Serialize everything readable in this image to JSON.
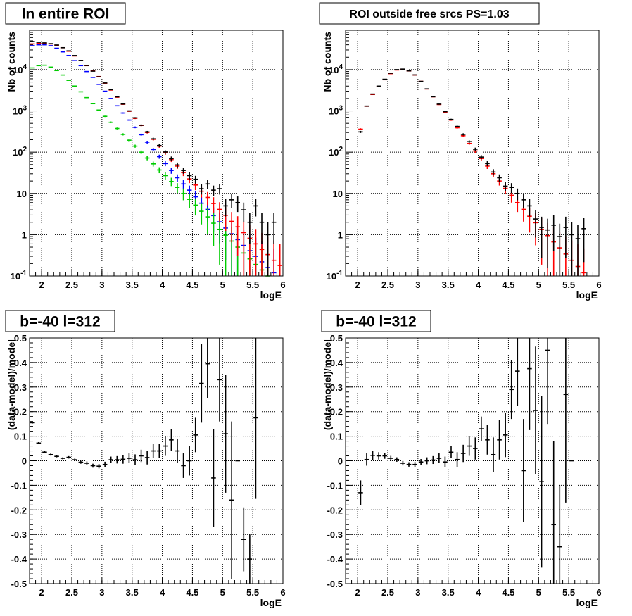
{
  "chart_data": [
    {
      "type": "scatter",
      "title": "In entire ROI",
      "xlabel": "logE",
      "ylabel": "Nb of counts",
      "xlim": [
        1.8,
        6.0
      ],
      "ylim": [
        0.1,
        90000
      ],
      "yscale": "log",
      "grid": true,
      "x_ticks": [
        "2",
        "2.5",
        "3",
        "3.5",
        "4",
        "4.5",
        "5",
        "5.5",
        "6"
      ],
      "y_ticks": [
        "10^{-1}",
        "1",
        "10",
        "10^{2}",
        "10^{3}",
        "10^{4}"
      ],
      "series": [
        {
          "color": "#0000ff",
          "bin_width": 0.1,
          "x": [
            1.85,
            1.95,
            2.05,
            2.15,
            2.25,
            2.35,
            2.45,
            2.55,
            2.65,
            2.75,
            2.85,
            2.95,
            3.05,
            3.15,
            3.25,
            3.35,
            3.45,
            3.55,
            3.65,
            3.75,
            3.85,
            3.95,
            4.05,
            4.15,
            4.25,
            4.35,
            4.45,
            4.55,
            4.65,
            4.75,
            4.85,
            4.95,
            5.05,
            5.15,
            5.25,
            5.35,
            5.45,
            5.55,
            5.65,
            5.75,
            5.85,
            5.95
          ],
          "y": [
            38000,
            40000,
            40000,
            38000,
            33000,
            27000,
            22000,
            16500,
            12500,
            9000,
            6500,
            4400,
            3000,
            2000,
            1330,
            890,
            600,
            400,
            265,
            175,
            116,
            78,
            53,
            36,
            24,
            17,
            12,
            8.3,
            5.8,
            4.1,
            2.9,
            2.05,
            1.45,
            1.05,
            0.76,
            0.55,
            0.41,
            0.3,
            0.22,
            0.16,
            0.12,
            0.09
          ]
        },
        {
          "color": "#00cc00",
          "bin_width": 0.1,
          "x": [
            1.85,
            1.95,
            2.05,
            2.15,
            2.25,
            2.35,
            2.45,
            2.55,
            2.65,
            2.75,
            2.85,
            2.95,
            3.05,
            3.15,
            3.25,
            3.35,
            3.45,
            3.55,
            3.65,
            3.75,
            3.85,
            3.95,
            4.05,
            4.15,
            4.25,
            4.35,
            4.45,
            4.55,
            4.65,
            4.75,
            4.85,
            4.95,
            5.05,
            5.15,
            5.25,
            5.35,
            5.45,
            5.55,
            5.65,
            5.75,
            5.85,
            5.95
          ],
          "y": [
            11000,
            12500,
            12800,
            11500,
            9500,
            7400,
            5500,
            4000,
            2900,
            2100,
            1500,
            1050,
            740,
            530,
            375,
            270,
            195,
            140,
            100,
            72,
            52,
            37,
            27,
            19.5,
            14,
            10,
            7.2,
            5.2,
            3.7,
            2.7,
            1.9,
            1.35,
            0.97,
            0.7,
            0.5,
            0.36,
            0.26,
            0.19,
            0.14,
            0.1,
            0.07,
            0.05
          ]
        },
        {
          "color": "#ff0000",
          "bin_width": 0.1,
          "x": [
            1.85,
            1.95,
            2.05,
            2.15,
            2.25,
            2.35,
            2.45,
            2.55,
            2.65,
            2.75,
            2.85,
            2.95,
            3.05,
            3.15,
            3.25,
            3.35,
            3.45,
            3.55,
            3.65,
            3.75,
            3.85,
            3.95,
            4.05,
            4.15,
            4.25,
            4.35,
            4.45,
            4.55,
            4.65,
            4.75,
            4.85,
            4.95,
            5.05,
            5.15,
            5.25,
            5.35,
            5.45,
            5.55,
            5.65,
            5.75,
            5.85,
            5.95
          ],
          "y": [
            42000,
            43000,
            43000,
            42000,
            39000,
            34000,
            28000,
            21500,
            16500,
            12500,
            9300,
            6800,
            4700,
            3200,
            2150,
            1450,
            980,
            660,
            445,
            300,
            205,
            140,
            96,
            66,
            46,
            32,
            22.5,
            16,
            11.3,
            8,
            5.7,
            4.1,
            2.95,
            2.1,
            1.55,
            1.12,
            0.82,
            0.6,
            0.44,
            0.33,
            0.24,
            0.18
          ]
        },
        {
          "color": "#000000",
          "bin_width": 0.1,
          "x": [
            1.85,
            1.95,
            2.05,
            2.15,
            2.25,
            2.35,
            2.45,
            2.55,
            2.65,
            2.75,
            2.85,
            2.95,
            3.05,
            3.15,
            3.25,
            3.35,
            3.45,
            3.55,
            3.65,
            3.75,
            3.85,
            3.95,
            4.05,
            4.15,
            4.25,
            4.35,
            4.45,
            4.55,
            4.65,
            4.75,
            4.85,
            4.95,
            5.05,
            5.15,
            5.25,
            5.35,
            5.45,
            5.55,
            5.65,
            5.75,
            5.85
          ],
          "y": [
            48000,
            46000,
            44500,
            42500,
            39500,
            34000,
            28500,
            22000,
            16700,
            12600,
            9200,
            6700,
            4750,
            3280,
            2200,
            1470,
            1000,
            680,
            450,
            310,
            210,
            145,
            101,
            70,
            49,
            36,
            27,
            22,
            13,
            17,
            12,
            13,
            5,
            7,
            6,
            4,
            2,
            5,
            2,
            1,
            2
          ]
        }
      ]
    },
    {
      "type": "scatter",
      "title": "ROI outside free srcs PS=1.03",
      "xlabel": "logE",
      "ylabel": "Nb of counts",
      "xlim": [
        1.8,
        6.0
      ],
      "ylim": [
        0.1,
        90000
      ],
      "yscale": "log",
      "grid": true,
      "x_ticks": [
        "2",
        "2.5",
        "3",
        "3.5",
        "4",
        "4.5",
        "5",
        "5.5",
        "6"
      ],
      "y_ticks": [
        "10^{-1}",
        "1",
        "10",
        "10^{2}",
        "10^{3}",
        "10^{4}"
      ],
      "series": [
        {
          "color": "#ff0000",
          "bin_width": 0.1,
          "x": [
            2.05,
            2.15,
            2.25,
            2.35,
            2.45,
            2.55,
            2.65,
            2.75,
            2.85,
            2.95,
            3.05,
            3.15,
            3.25,
            3.35,
            3.45,
            3.55,
            3.65,
            3.75,
            3.85,
            3.95,
            4.05,
            4.15,
            4.25,
            4.35,
            4.45,
            4.55,
            4.65,
            4.75,
            4.85,
            4.95,
            5.05,
            5.15,
            5.25,
            5.35,
            5.45,
            5.55,
            5.65,
            5.75,
            5.85,
            5.95
          ],
          "y": [
            360,
            1300,
            2500,
            3900,
            5700,
            8000,
            9800,
            10200,
            9300,
            7400,
            5200,
            3400,
            2200,
            1430,
            930,
            600,
            390,
            250,
            163,
            107,
            70,
            46,
            30,
            20,
            13.3,
            9,
            6,
            4.1,
            2.8,
            1.95,
            1.35,
            0.95,
            0.67,
            0.48,
            0.34,
            0.24,
            0.17,
            0.12,
            0.09,
            0.06
          ]
        },
        {
          "color": "#000000",
          "bin_width": 0.1,
          "x": [
            2.05,
            2.15,
            2.25,
            2.35,
            2.45,
            2.55,
            2.65,
            2.75,
            2.85,
            2.95,
            3.05,
            3.15,
            3.25,
            3.35,
            3.45,
            3.55,
            3.65,
            3.75,
            3.85,
            3.95,
            4.05,
            4.15,
            4.25,
            4.35,
            4.45,
            4.55,
            4.65,
            4.75,
            4.85,
            4.95,
            5.05,
            5.15,
            5.25,
            5.35,
            5.45,
            5.55,
            5.65,
            5.75
          ],
          "y": [
            310,
            1310,
            2560,
            3990,
            5850,
            8200,
            10000,
            10300,
            9350,
            7450,
            5200,
            3420,
            2210,
            1460,
            960,
            620,
            420,
            270,
            180,
            118,
            76,
            53,
            33,
            24,
            15,
            14,
            10,
            7,
            5,
            2.4,
            1.5,
            1.3,
            1.7,
            0.9,
            1.5,
            1,
            0.8,
            1.4
          ]
        }
      ]
    },
    {
      "type": "scatter",
      "title": "b=-40 l=312",
      "xlabel": "logE",
      "ylabel": "(data-model)/model",
      "xlim": [
        1.8,
        6.0
      ],
      "ylim": [
        -0.5,
        0.5
      ],
      "grid": true,
      "x_ticks": [
        "2",
        "2.5",
        "3",
        "3.5",
        "4",
        "4.5",
        "5",
        "5.5",
        "6"
      ],
      "y_ticks": [
        "-0.5",
        "-0.4",
        "-0.3",
        "-0.2",
        "-0.1",
        "0",
        "0.1",
        "0.2",
        "0.3",
        "0.4",
        "0.5"
      ],
      "series": [
        {
          "color": "#000000",
          "bin_width": 0.1,
          "x": [
            1.85,
            1.95,
            2.05,
            2.15,
            2.25,
            2.35,
            2.45,
            2.55,
            2.65,
            2.75,
            2.85,
            2.95,
            3.05,
            3.15,
            3.25,
            3.35,
            3.45,
            3.55,
            3.65,
            3.75,
            3.85,
            3.95,
            4.05,
            4.15,
            4.25,
            4.35,
            4.45,
            4.55,
            4.65,
            4.75,
            4.85,
            4.95,
            5.05,
            5.15,
            5.25,
            5.35,
            5.45,
            5.55
          ],
          "y": [
            0.155,
            0.072,
            0.035,
            0.025,
            0.018,
            0.01,
            0.014,
            0.004,
            -0.006,
            -0.01,
            -0.02,
            -0.022,
            -0.015,
            0.004,
            0.004,
            0.006,
            0.01,
            0.004,
            0.02,
            0.013,
            0.04,
            0.04,
            0.06,
            0.085,
            0.04,
            -0.02,
            0.0,
            0.105,
            0.315,
            0.395,
            -0.07,
            0.33,
            0.11,
            -0.16,
            0.0,
            -0.32,
            -0.4,
            0.175
          ],
          "err": [
            0.003,
            0.004,
            0.004,
            0.004,
            0.004,
            0.004,
            0.005,
            0.005,
            0.006,
            0.007,
            0.008,
            0.009,
            0.011,
            0.013,
            0.015,
            0.018,
            0.02,
            0.022,
            0.025,
            0.028,
            0.03,
            0.03,
            0.04,
            0.045,
            0.05,
            0.05,
            0.06,
            0.07,
            0.16,
            0.14,
            0.2,
            0.17,
            0.24,
            0.32,
            0.0,
            0.13,
            0.1,
            0.33
          ]
        }
      ]
    },
    {
      "type": "scatter",
      "title": "b=-40 l=312",
      "xlabel": "logE",
      "ylabel": "(data-model)/model",
      "xlim": [
        1.8,
        6.0
      ],
      "ylim": [
        -0.5,
        0.5
      ],
      "grid": true,
      "x_ticks": [
        "2",
        "2.5",
        "3",
        "3.5",
        "4",
        "4.5",
        "5",
        "5.5",
        "6"
      ],
      "y_ticks": [
        "-0.5",
        "-0.4",
        "-0.3",
        "-0.2",
        "-0.1",
        "0",
        "0.1",
        "0.2",
        "0.3",
        "0.4",
        "0.5"
      ],
      "series": [
        {
          "color": "#000000",
          "bin_width": 0.1,
          "x": [
            2.05,
            2.15,
            2.25,
            2.35,
            2.45,
            2.55,
            2.65,
            2.75,
            2.85,
            2.95,
            3.05,
            3.15,
            3.25,
            3.35,
            3.45,
            3.55,
            3.65,
            3.75,
            3.85,
            3.95,
            4.05,
            4.15,
            4.25,
            4.35,
            4.45,
            4.55,
            4.65,
            4.75,
            4.85,
            4.95,
            5.05,
            5.15,
            5.25,
            5.35,
            5.45,
            5.55
          ],
          "y": [
            -0.13,
            0.005,
            0.022,
            0.02,
            0.02,
            0.01,
            0.005,
            -0.01,
            -0.015,
            -0.015,
            -0.005,
            0.0,
            0.003,
            0.01,
            -0.005,
            0.035,
            0.005,
            0.03,
            0.06,
            0.05,
            0.13,
            0.085,
            0.025,
            0.085,
            0.105,
            0.29,
            0.365,
            -0.04,
            0.375,
            0.205,
            -0.085,
            0.45,
            -0.26,
            -0.35,
            0.27,
            0.0
          ],
          "err": [
            0.05,
            0.025,
            0.018,
            0.015,
            0.012,
            0.01,
            0.009,
            0.009,
            0.009,
            0.01,
            0.012,
            0.014,
            0.016,
            0.02,
            0.022,
            0.025,
            0.03,
            0.035,
            0.04,
            0.045,
            0.05,
            0.06,
            0.07,
            0.08,
            0.09,
            0.12,
            0.14,
            0.21,
            0.25,
            0.26,
            0.35,
            0.3,
            0.34,
            0.25,
            0.44,
            0.0
          ]
        }
      ]
    }
  ]
}
